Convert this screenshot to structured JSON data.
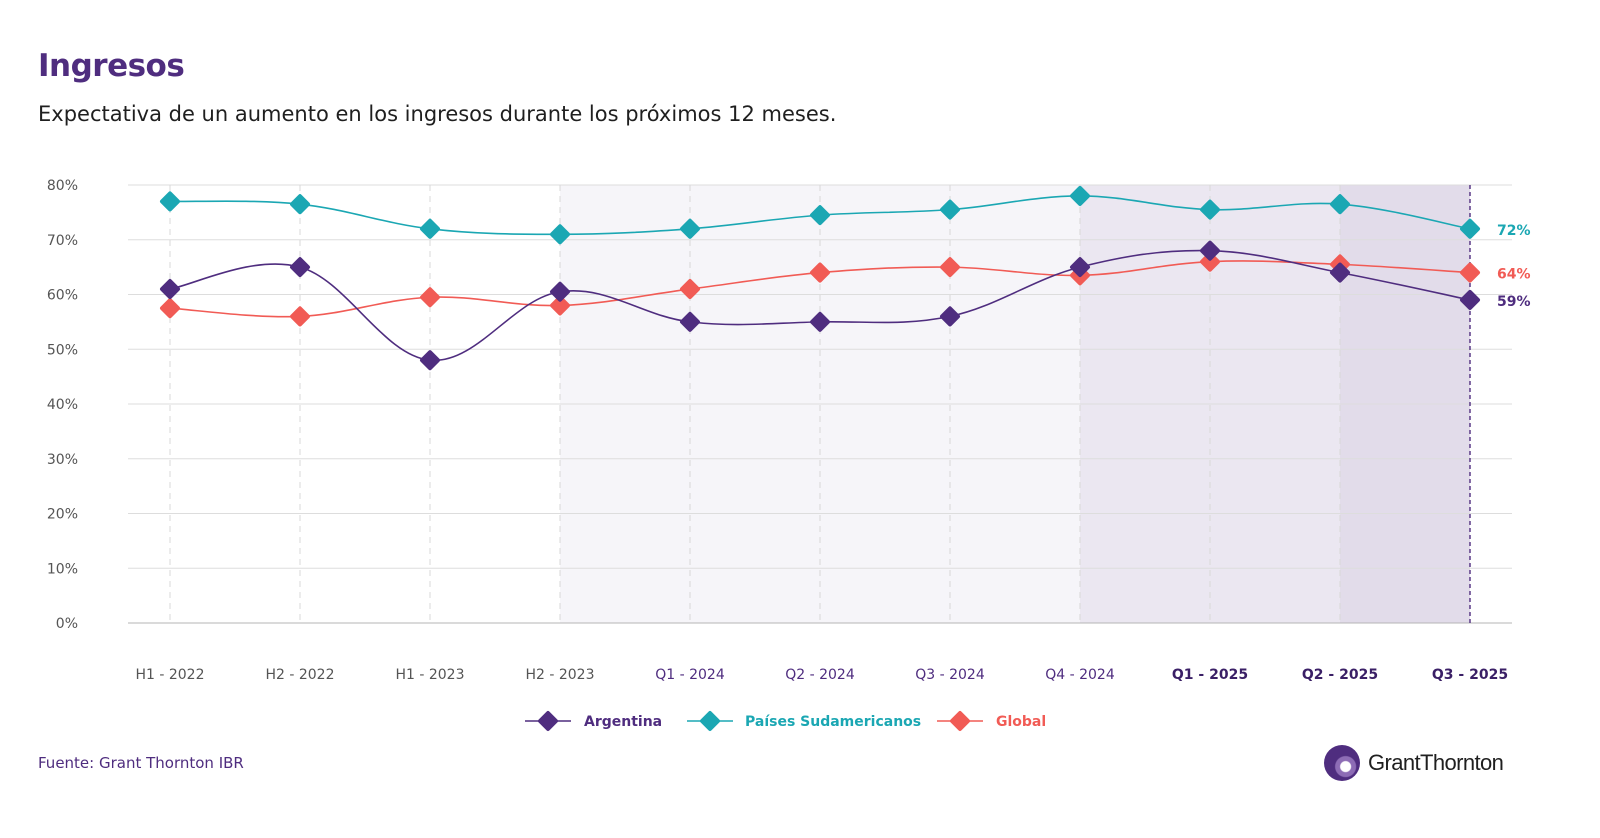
{
  "header": {
    "title": "Ingresos",
    "subtitle": "Expectativa de un aumento en los ingresos durante los próximos 12 meses."
  },
  "footer": {
    "source": "Fuente: Grant Thornton IBR",
    "logo_text": "GrantThornton"
  },
  "colors": {
    "argentina": "#4f2d7f",
    "sudamerica": "#1ba7b3",
    "global": "#f15b55",
    "title": "#4f2d7f",
    "grid": "#dddddd",
    "shade_light": "#f6f5f9",
    "shade_mid": "#ebe7f1",
    "shade_dark": "#e2dcea"
  },
  "chart_data": {
    "type": "line",
    "title": "Ingresos",
    "subtitle": "Expectativa de un aumento en los ingresos durante los próximos 12 meses.",
    "categories": [
      "H1 - 2022",
      "H2 - 2022",
      "H1 - 2023",
      "H2 - 2023",
      "Q1 - 2024",
      "Q2 - 2024",
      "Q3 - 2024",
      "Q4 - 2024",
      "Q1 - 2025",
      "Q2 - 2025",
      "Q3 - 2025"
    ],
    "bold_categories": [
      "Q1 - 2025",
      "Q2 - 2025",
      "Q3 - 2025"
    ],
    "y_ticks": [
      "0%",
      "10%",
      "20%",
      "30%",
      "40%",
      "50%",
      "60%",
      "70%",
      "80%"
    ],
    "ylim": [
      0,
      80
    ],
    "series": [
      {
        "name": "Argentina",
        "color_key": "argentina",
        "end_label": "59%",
        "values": [
          61,
          65,
          48,
          60.5,
          55,
          55,
          56,
          65,
          68,
          64,
          59
        ]
      },
      {
        "name": "Países Sudamericanos",
        "color_key": "sudamerica",
        "end_label": "72%",
        "values": [
          77,
          76.5,
          72,
          71,
          72,
          74.5,
          75.5,
          78,
          75.5,
          76.5,
          72
        ]
      },
      {
        "name": "Global",
        "color_key": "global",
        "end_label": "64%",
        "values": [
          57.5,
          56,
          59.5,
          58,
          61,
          64,
          65,
          63.5,
          66,
          65.5,
          64
        ]
      }
    ],
    "legend": [
      "Argentina",
      "Países Sudamericanos",
      "Global"
    ],
    "legend_position": "bottom"
  }
}
